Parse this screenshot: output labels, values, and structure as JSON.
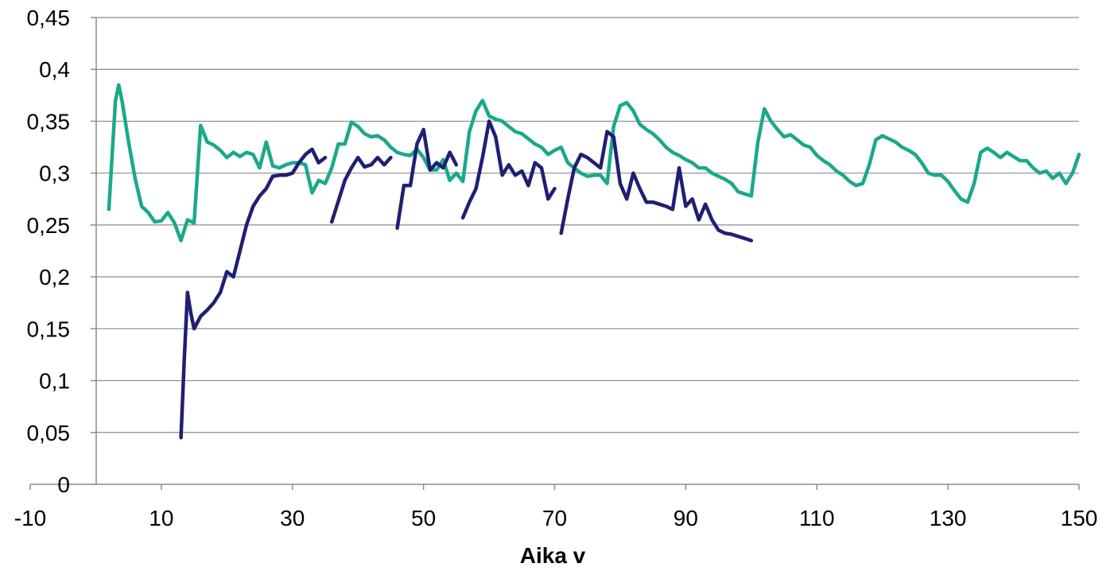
{
  "chart_data": {
    "type": "line",
    "title": "",
    "xlabel": "Aika v",
    "ylabel": "",
    "xlim": [
      -10,
      150
    ],
    "ylim": [
      0,
      0.45
    ],
    "x_ticks": [
      -10,
      10,
      30,
      50,
      70,
      90,
      110,
      130,
      150
    ],
    "x_tick_labels": [
      "-10",
      "10",
      "30",
      "50",
      "70",
      "90",
      "110",
      "130",
      "150"
    ],
    "y_ticks": [
      0,
      0.05,
      0.1,
      0.15,
      0.2,
      0.25,
      0.3,
      0.35,
      0.4,
      0.45
    ],
    "y_tick_labels": [
      "0",
      "0,05",
      "0,1",
      "0,15",
      "0,2",
      "0,25",
      "0,3",
      "0,35",
      "0,4",
      "0,45"
    ],
    "grid": "horizontal",
    "legend": "none",
    "series": [
      {
        "color": "#1aa98a",
        "segments": [
          [
            [
              2,
              0.265
            ],
            [
              3,
              0.37
            ],
            [
              3.5,
              0.385
            ],
            [
              4,
              0.37
            ],
            [
              5,
              0.33
            ],
            [
              6,
              0.295
            ],
            [
              7,
              0.268
            ],
            [
              8,
              0.262
            ],
            [
              9,
              0.253
            ],
            [
              10,
              0.254
            ],
            [
              11,
              0.262
            ],
            [
              12,
              0.252
            ],
            [
              13,
              0.235
            ],
            [
              14,
              0.255
            ],
            [
              15,
              0.252
            ],
            [
              16,
              0.346
            ],
            [
              17,
              0.33
            ],
            [
              18,
              0.327
            ],
            [
              19,
              0.322
            ],
            [
              20,
              0.315
            ],
            [
              21,
              0.32
            ],
            [
              22,
              0.316
            ],
            [
              23,
              0.32
            ],
            [
              24,
              0.318
            ],
            [
              25,
              0.305
            ],
            [
              26,
              0.33
            ],
            [
              27,
              0.307
            ],
            [
              28,
              0.305
            ],
            [
              29,
              0.308
            ],
            [
              30,
              0.31
            ],
            [
              31,
              0.31
            ],
            [
              32,
              0.308
            ],
            [
              33,
              0.281
            ],
            [
              34,
              0.293
            ],
            [
              35,
              0.29
            ],
            [
              36,
              0.305
            ],
            [
              37,
              0.328
            ],
            [
              38,
              0.328
            ],
            [
              39,
              0.349
            ],
            [
              40,
              0.345
            ],
            [
              41,
              0.338
            ],
            [
              42,
              0.335
            ],
            [
              43,
              0.336
            ],
            [
              44,
              0.332
            ],
            [
              45,
              0.325
            ],
            [
              46,
              0.32
            ],
            [
              47,
              0.318
            ],
            [
              48,
              0.317
            ],
            [
              49,
              0.323
            ],
            [
              50,
              0.315
            ],
            [
              51,
              0.303
            ],
            [
              52,
              0.303
            ],
            [
              53,
              0.313
            ],
            [
              54,
              0.293
            ],
            [
              55,
              0.3
            ],
            [
              56,
              0.292
            ],
            [
              57,
              0.34
            ],
            [
              58,
              0.36
            ],
            [
              59,
              0.37
            ],
            [
              60,
              0.355
            ],
            [
              61,
              0.352
            ],
            [
              62,
              0.35
            ],
            [
              63,
              0.345
            ],
            [
              64,
              0.34
            ],
            [
              65,
              0.338
            ],
            [
              66,
              0.333
            ],
            [
              67,
              0.328
            ],
            [
              68,
              0.325
            ],
            [
              69,
              0.318
            ],
            [
              70,
              0.322
            ],
            [
              71,
              0.325
            ],
            [
              72,
              0.31
            ],
            [
              73,
              0.305
            ],
            [
              74,
              0.3
            ],
            [
              75,
              0.297
            ],
            [
              76,
              0.298
            ],
            [
              77,
              0.298
            ],
            [
              78,
              0.29
            ],
            [
              79,
              0.345
            ],
            [
              80,
              0.365
            ],
            [
              81,
              0.368
            ],
            [
              82,
              0.36
            ],
            [
              83,
              0.347
            ],
            [
              84,
              0.342
            ],
            [
              85,
              0.338
            ],
            [
              86,
              0.332
            ],
            [
              87,
              0.325
            ],
            [
              88,
              0.32
            ],
            [
              89,
              0.317
            ],
            [
              90,
              0.313
            ],
            [
              91,
              0.31
            ],
            [
              92,
              0.305
            ],
            [
              93,
              0.305
            ],
            [
              94,
              0.3
            ],
            [
              95,
              0.297
            ],
            [
              96,
              0.294
            ],
            [
              97,
              0.29
            ],
            [
              98,
              0.282
            ],
            [
              99,
              0.28
            ],
            [
              100,
              0.278
            ],
            [
              101,
              0.33
            ],
            [
              102,
              0.362
            ],
            [
              103,
              0.35
            ],
            [
              104,
              0.342
            ],
            [
              105,
              0.335
            ],
            [
              106,
              0.337
            ],
            [
              107,
              0.332
            ],
            [
              108,
              0.327
            ],
            [
              109,
              0.325
            ],
            [
              110,
              0.317
            ],
            [
              111,
              0.312
            ],
            [
              112,
              0.308
            ],
            [
              113,
              0.302
            ],
            [
              114,
              0.298
            ],
            [
              115,
              0.292
            ],
            [
              116,
              0.288
            ],
            [
              117,
              0.29
            ],
            [
              118,
              0.308
            ],
            [
              119,
              0.332
            ],
            [
              120,
              0.336
            ],
            [
              121,
              0.333
            ],
            [
              122,
              0.33
            ],
            [
              123,
              0.325
            ],
            [
              124,
              0.322
            ],
            [
              125,
              0.318
            ],
            [
              126,
              0.31
            ],
            [
              127,
              0.3
            ],
            [
              128,
              0.298
            ],
            [
              129,
              0.298
            ],
            [
              130,
              0.292
            ],
            [
              131,
              0.283
            ],
            [
              132,
              0.275
            ],
            [
              133,
              0.272
            ],
            [
              134,
              0.29
            ],
            [
              135,
              0.32
            ],
            [
              136,
              0.324
            ],
            [
              137,
              0.32
            ],
            [
              138,
              0.315
            ],
            [
              139,
              0.32
            ],
            [
              140,
              0.316
            ],
            [
              141,
              0.312
            ],
            [
              142,
              0.312
            ],
            [
              143,
              0.305
            ],
            [
              144,
              0.3
            ],
            [
              145,
              0.302
            ],
            [
              146,
              0.295
            ],
            [
              147,
              0.3
            ],
            [
              148,
              0.29
            ],
            [
              149,
              0.3
            ],
            [
              150,
              0.318
            ]
          ]
        ]
      },
      {
        "color": "#1f1f73",
        "segments": [
          [
            [
              13,
              0.045
            ],
            [
              13.5,
              0.12
            ],
            [
              14,
              0.185
            ],
            [
              14.5,
              0.165
            ],
            [
              15,
              0.15
            ],
            [
              16,
              0.162
            ],
            [
              17,
              0.168
            ],
            [
              18,
              0.175
            ],
            [
              19,
              0.185
            ],
            [
              20,
              0.205
            ],
            [
              21,
              0.2
            ],
            [
              22,
              0.225
            ],
            [
              23,
              0.25
            ],
            [
              24,
              0.268
            ],
            [
              25,
              0.278
            ],
            [
              26,
              0.285
            ],
            [
              27,
              0.297
            ],
            [
              28,
              0.298
            ],
            [
              29,
              0.298
            ],
            [
              30,
              0.3
            ],
            [
              31,
              0.31
            ],
            [
              32,
              0.318
            ],
            [
              33,
              0.323
            ],
            [
              34,
              0.31
            ],
            [
              35,
              0.315
            ]
          ],
          [
            [
              36,
              0.253
            ],
            [
              37,
              0.273
            ],
            [
              38,
              0.293
            ],
            [
              39,
              0.305
            ],
            [
              40,
              0.315
            ],
            [
              41,
              0.306
            ],
            [
              42,
              0.308
            ],
            [
              43,
              0.315
            ],
            [
              44,
              0.308
            ],
            [
              45,
              0.315
            ]
          ],
          [
            [
              46,
              0.247
            ],
            [
              47,
              0.288
            ],
            [
              48,
              0.288
            ],
            [
              49,
              0.328
            ],
            [
              50,
              0.342
            ],
            [
              51,
              0.303
            ],
            [
              52,
              0.31
            ],
            [
              53,
              0.305
            ],
            [
              54,
              0.32
            ],
            [
              55,
              0.308
            ]
          ],
          [
            [
              56,
              0.257
            ],
            [
              57,
              0.272
            ],
            [
              58,
              0.285
            ],
            [
              59,
              0.315
            ],
            [
              60,
              0.35
            ],
            [
              61,
              0.335
            ],
            [
              62,
              0.298
            ],
            [
              63,
              0.308
            ],
            [
              64,
              0.298
            ],
            [
              65,
              0.302
            ],
            [
              66,
              0.288
            ],
            [
              67,
              0.31
            ],
            [
              68,
              0.305
            ],
            [
              69,
              0.275
            ],
            [
              70,
              0.285
            ]
          ],
          [
            [
              71,
              0.242
            ],
            [
              72,
              0.275
            ],
            [
              73,
              0.305
            ],
            [
              74,
              0.318
            ],
            [
              75,
              0.315
            ],
            [
              76,
              0.31
            ],
            [
              77,
              0.305
            ],
            [
              78,
              0.34
            ],
            [
              79,
              0.335
            ],
            [
              80,
              0.29
            ],
            [
              81,
              0.275
            ],
            [
              82,
              0.3
            ],
            [
              83,
              0.285
            ],
            [
              84,
              0.272
            ],
            [
              85,
              0.272
            ],
            [
              86,
              0.27
            ],
            [
              87,
              0.268
            ],
            [
              88,
              0.265
            ],
            [
              89,
              0.305
            ],
            [
              90,
              0.268
            ],
            [
              91,
              0.275
            ],
            [
              92,
              0.255
            ],
            [
              93,
              0.27
            ],
            [
              94,
              0.255
            ],
            [
              95,
              0.245
            ],
            [
              96,
              0.242
            ],
            [
              97,
              0.241
            ],
            [
              98,
              0.239
            ],
            [
              99,
              0.237
            ],
            [
              100,
              0.235
            ]
          ]
        ]
      }
    ]
  }
}
